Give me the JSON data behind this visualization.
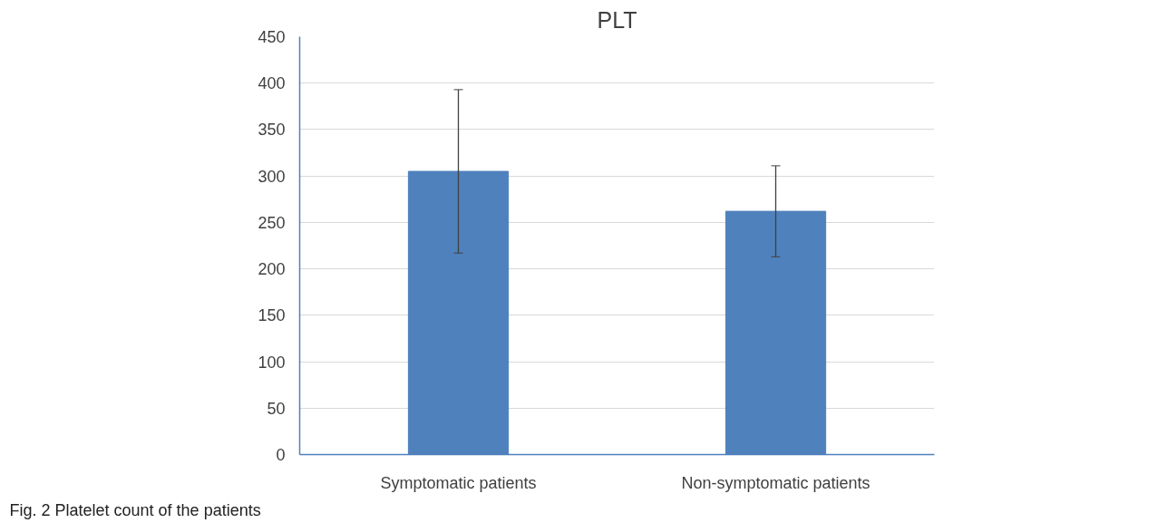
{
  "chart_data": {
    "type": "bar",
    "title": "PLT",
    "categories": [
      "Symptomatic patients",
      "Non-symptomatic patients"
    ],
    "values": [
      305,
      262
    ],
    "errors": [
      88,
      49
    ],
    "color": "#4f81bd",
    "ylim": [
      0,
      450
    ],
    "yticks": [
      0,
      50,
      100,
      150,
      200,
      250,
      300,
      350,
      400,
      450
    ],
    "grid": "y",
    "annotations": [
      "Fig. 2 Platelet count of the patients"
    ]
  }
}
